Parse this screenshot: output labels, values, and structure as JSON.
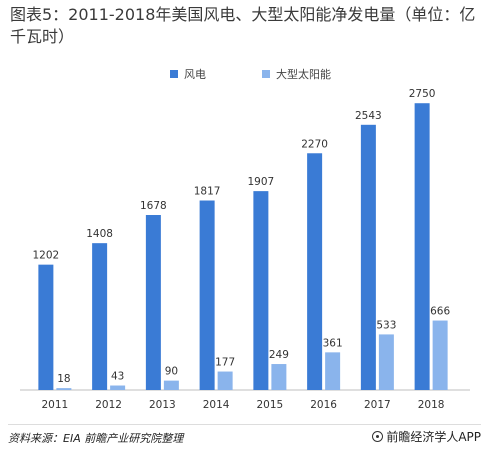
{
  "chart_data": {
    "type": "bar",
    "title": "图表5：2011-2018年美国风电、大型太阳能净发电量（单位：亿千瓦时）",
    "categories": [
      "2011",
      "2012",
      "2013",
      "2014",
      "2015",
      "2016",
      "2017",
      "2018"
    ],
    "series": [
      {
        "name": "风电",
        "color": "#3a7bd5",
        "values": [
          1202,
          1408,
          1678,
          1817,
          1907,
          2270,
          2543,
          2750
        ]
      },
      {
        "name": "大型太阳能",
        "color": "#8ab4ec",
        "values": [
          18,
          43,
          90,
          177,
          249,
          361,
          533,
          666
        ]
      }
    ],
    "ylim": [
      0,
      2800
    ],
    "grid": false,
    "legend": "top-center"
  },
  "footer": {
    "source": "资料来源：EIA 前瞻产业研究院整理",
    "brand": "前瞻经济学人APP"
  }
}
